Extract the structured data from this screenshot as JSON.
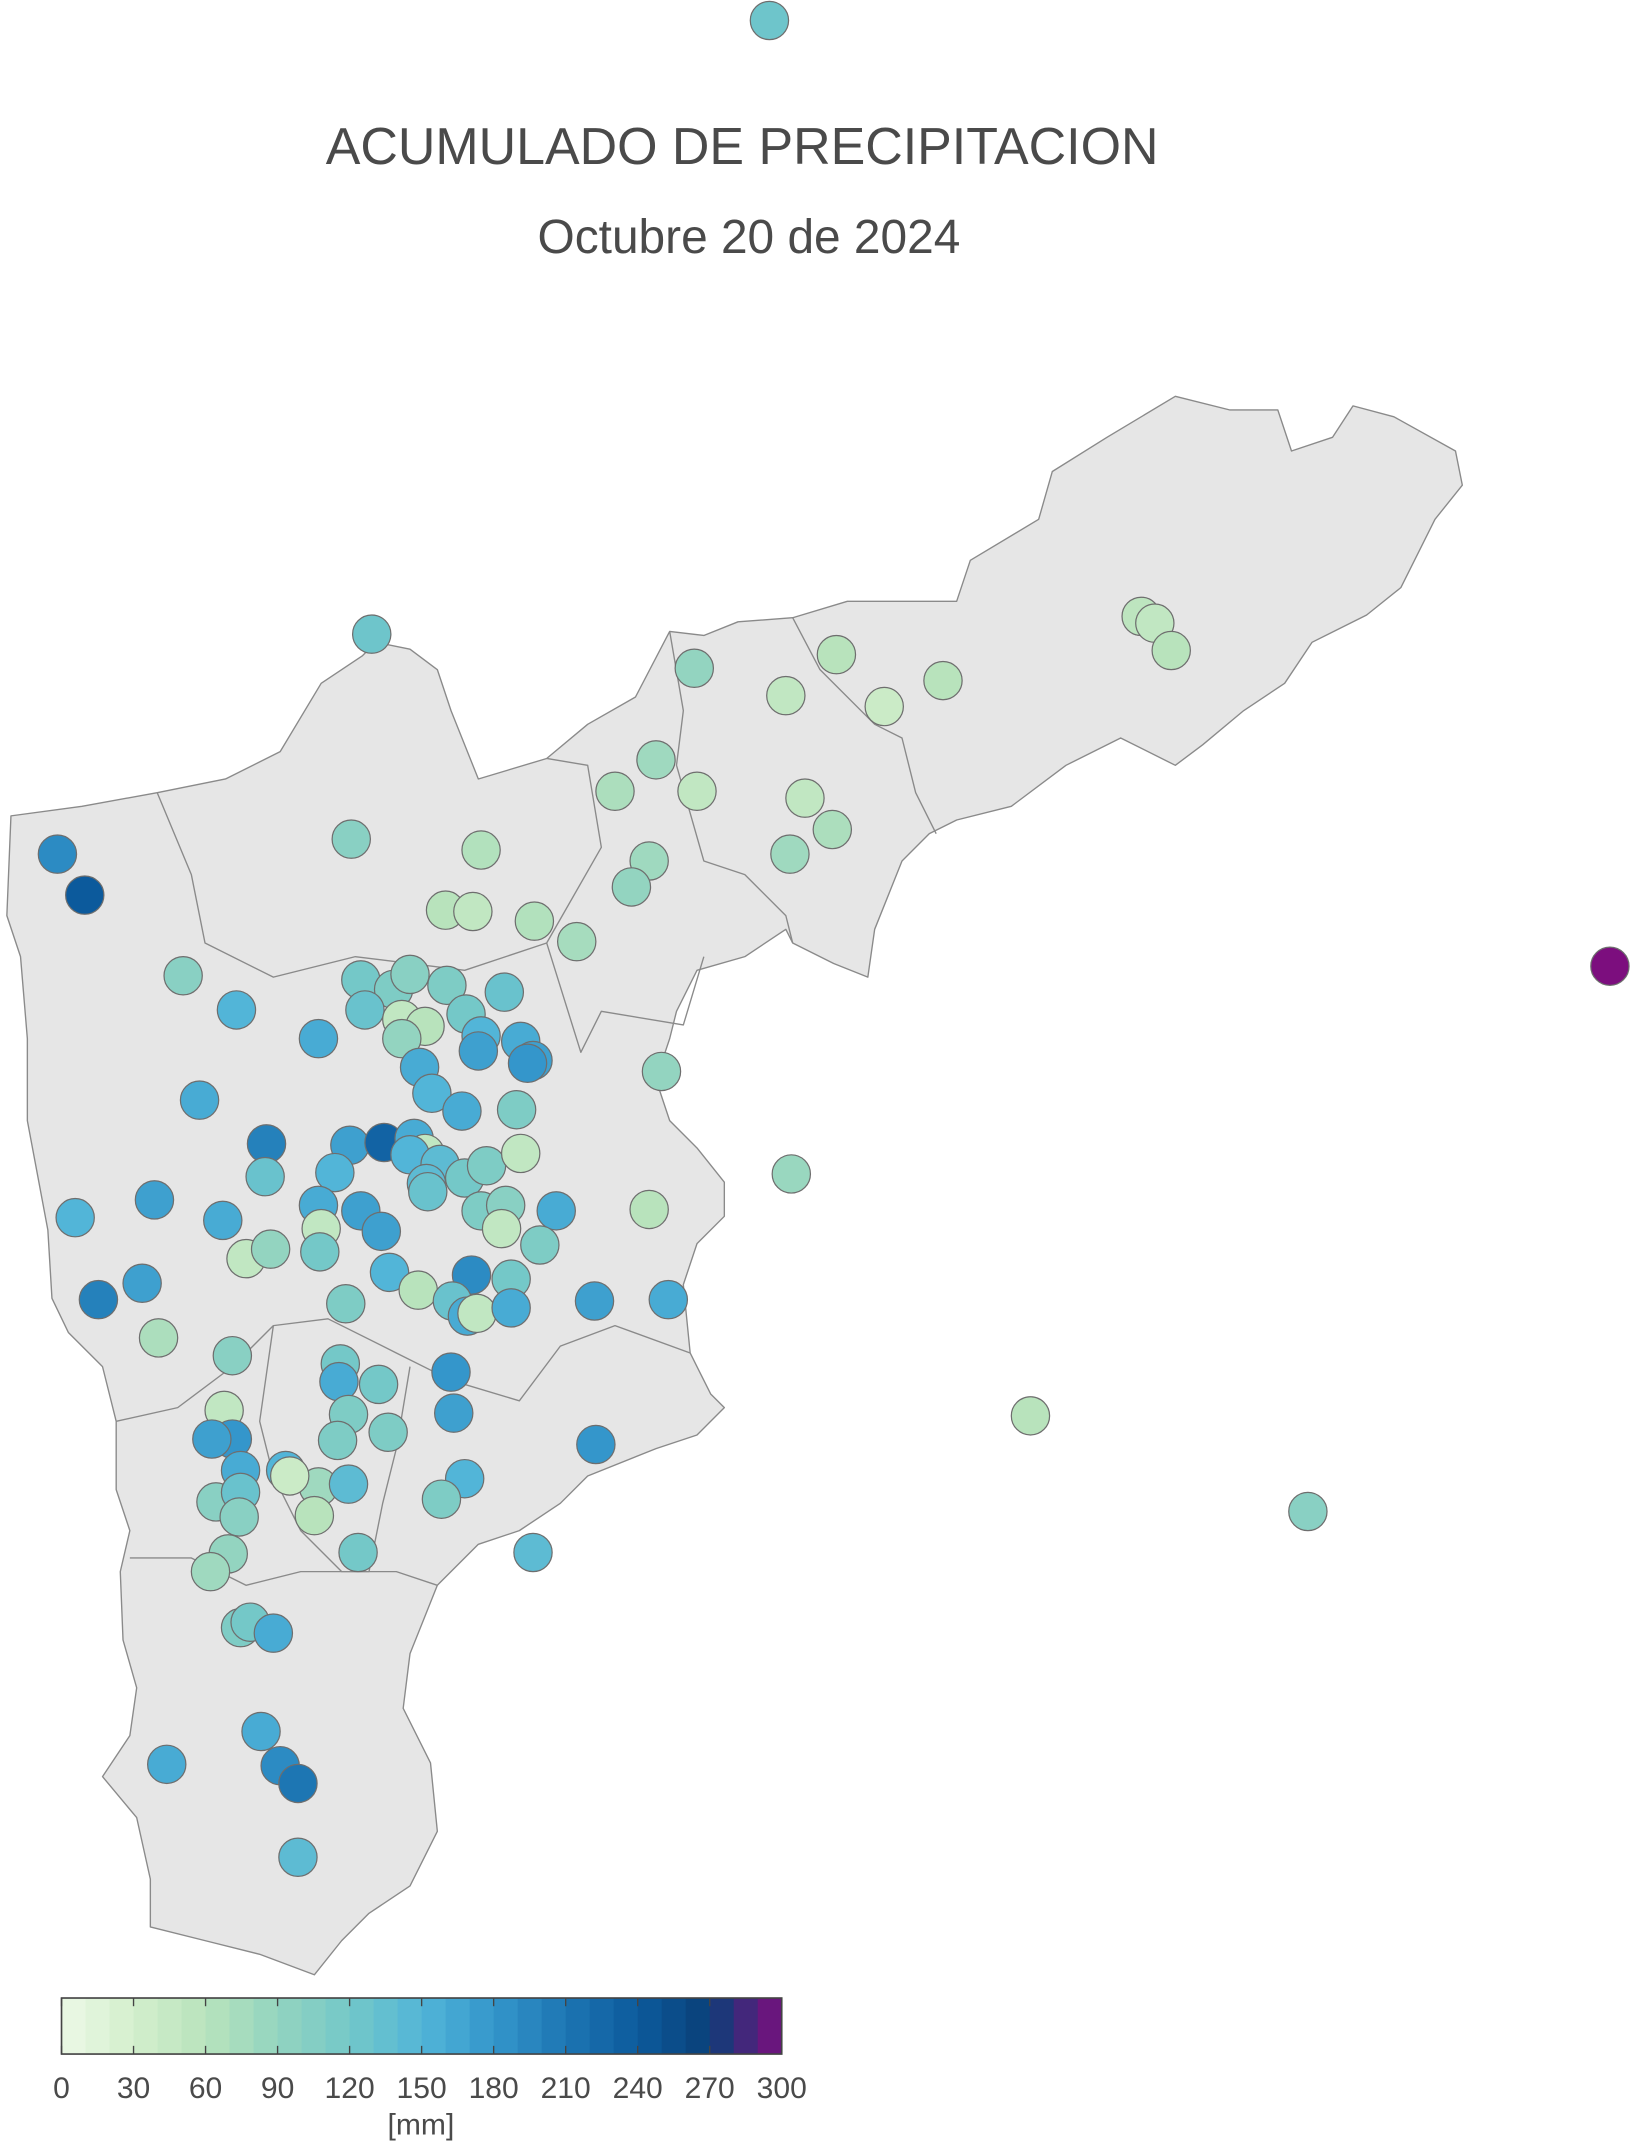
{
  "chart_data": {
    "type": "map",
    "title": "ACUMULADO DE PRECIPITACION",
    "subtitle": "Octubre 20 de 2024",
    "values": [
      125,
      125,
      90,
      60,
      50,
      40,
      60,
      55,
      50,
      60,
      80,
      70,
      50,
      50,
      70,
      80,
      80,
      90,
      190,
      240,
      100,
      65,
      60,
      50,
      65,
      75,
      100,
      150,
      160,
      120,
      110,
      100,
      130,
      110,
      130,
      50,
      60,
      120,
      90,
      150,
      170,
      160,
      170,
      180,
      160,
      150,
      160,
      110,
      90,
      160,
      200,
      130,
      170,
      230,
      160,
      50,
      150,
      150,
      140,
      140,
      130,
      120,
      110,
      50,
      85,
      150,
      170,
      160,
      160,
      170,
      50,
      170,
      110,
      100,
      50,
      160,
      60,
      110,
      50,
      90,
      120,
      150,
      60,
      190,
      120,
      130,
      160,
      50,
      160,
      170,
      160,
      200,
      170,
      70,
      110,
      100,
      120,
      160,
      120,
      180,
      170,
      50,
      110,
      110,
      180,
      170,
      110,
      180,
      160,
      150,
      80,
      40,
      140,
      150,
      110,
      100,
      130,
      100,
      60,
      90,
      80,
      120,
      140,
      60,
      100,
      110,
      120,
      160,
      160,
      160,
      190,
      210,
      140,
      300
    ],
    "clim": [
      0,
      300
    ],
    "cticks": [
      0,
      30,
      60,
      90,
      120,
      150,
      180,
      210,
      240,
      270,
      300
    ],
    "colors": [
      "#ecf8e6",
      "#d4efcd",
      "#b8e3bc",
      "#93d4c0",
      "#74c8c8",
      "#52b5d8",
      "#3496cb",
      "#1d76b3",
      "#0c5a9c",
      "#0a3f78",
      "#7c0e7e"
    ],
    "colorbar_label": "[mm]"
  }
}
